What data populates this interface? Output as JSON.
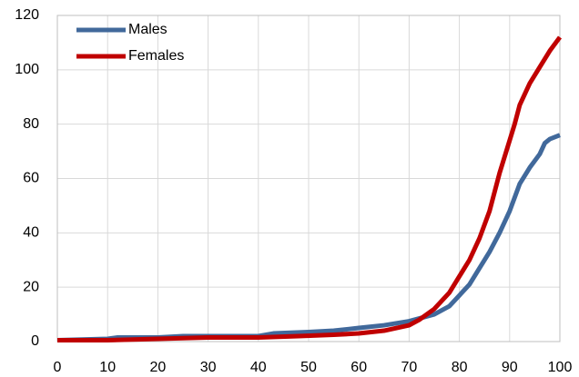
{
  "chart_data": {
    "type": "line",
    "series": [
      {
        "name": "Males",
        "color": "#41699b",
        "x": [
          0,
          10,
          12,
          20,
          25,
          30,
          40,
          43,
          50,
          55,
          60,
          65,
          70,
          75,
          78,
          80,
          82,
          84,
          86,
          88,
          90,
          92,
          94,
          96,
          97,
          98,
          100
        ],
        "values": [
          0.5,
          1,
          1.5,
          1.5,
          2,
          2,
          2,
          3,
          3.5,
          4,
          5,
          6,
          7.5,
          10,
          13,
          17,
          21,
          27,
          33,
          40,
          48,
          58,
          64,
          69,
          73,
          74.5,
          76
        ]
      },
      {
        "name": "Females",
        "color": "#c00000",
        "x": [
          0,
          10,
          20,
          30,
          40,
          48,
          55,
          60,
          65,
          70,
          72,
          75,
          78,
          80,
          82,
          84,
          86,
          88,
          90,
          91,
          92,
          94,
          96,
          98,
          100
        ],
        "values": [
          0.5,
          0.5,
          1,
          1.5,
          1.5,
          2,
          2.5,
          3,
          4,
          6,
          8,
          12,
          18,
          24,
          30,
          38,
          48,
          62,
          74,
          80,
          87,
          95,
          101,
          107,
          112
        ]
      }
    ],
    "xlim": [
      0,
      100
    ],
    "xticks": [
      0,
      10,
      20,
      30,
      40,
      50,
      60,
      70,
      80,
      90,
      100
    ],
    "ylim": [
      0,
      120
    ],
    "yticks": [
      0,
      20,
      40,
      60,
      80,
      100,
      120
    ],
    "grid": true,
    "legend": "upper left"
  }
}
